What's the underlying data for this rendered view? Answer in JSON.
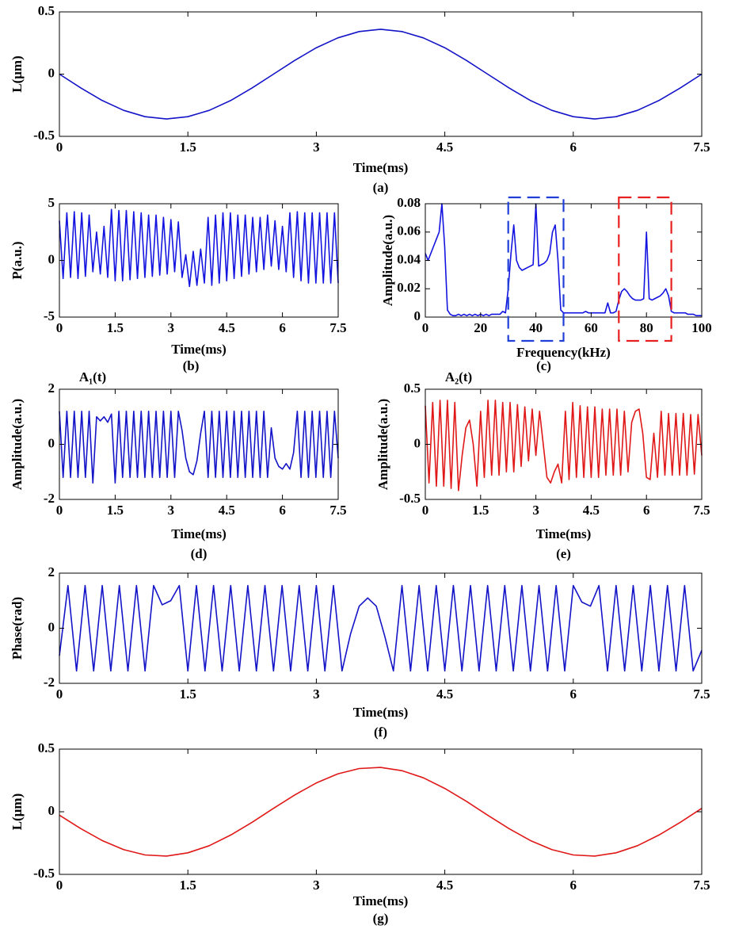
{
  "chart_data": [
    {
      "type": "line",
      "caption": "(a)",
      "xlabel": "Time(ms)",
      "ylabel": "L(μm)",
      "color": "#1414c8",
      "xlim": [
        0,
        7.5
      ],
      "xticks": [
        0,
        1.5,
        3,
        4.5,
        6,
        7.5
      ],
      "ylim": [
        -0.5,
        0.5
      ],
      "yticks": [
        -0.5,
        0,
        0.5
      ],
      "x": [
        0,
        0.25,
        0.5,
        0.75,
        1,
        1.25,
        1.5,
        1.75,
        2,
        2.25,
        2.5,
        2.75,
        3,
        3.25,
        3.5,
        3.75,
        4,
        4.25,
        4.5,
        4.75,
        5,
        5.25,
        5.5,
        5.75,
        6,
        6.25,
        6.5,
        6.75,
        7,
        7.25,
        7.5
      ],
      "values": [
        0,
        -0.111,
        -0.212,
        -0.291,
        -0.342,
        -0.36,
        -0.342,
        -0.291,
        -0.212,
        -0.111,
        0,
        0.111,
        0.212,
        0.291,
        0.342,
        0.36,
        0.342,
        0.291,
        0.212,
        0.111,
        0,
        -0.111,
        -0.212,
        -0.291,
        -0.342,
        -0.36,
        -0.342,
        -0.291,
        -0.212,
        -0.111,
        0
      ]
    },
    {
      "type": "line",
      "caption": "(b)",
      "xlabel": "Time(ms)",
      "ylabel": "P(a.u.)",
      "color": "#1414e0",
      "xlim": [
        0,
        7.5
      ],
      "xticks": [
        0,
        1.5,
        3,
        4.5,
        6,
        7.5
      ],
      "ylim": [
        -5,
        5
      ],
      "yticks": [
        -5,
        0,
        5
      ],
      "x": [
        0,
        0.1,
        0.2,
        0.3,
        0.4,
        0.5,
        0.6,
        0.7,
        0.8,
        0.9,
        1,
        1.1,
        1.2,
        1.3,
        1.4,
        1.5,
        1.6,
        1.7,
        1.8,
        1.9,
        2,
        2.1,
        2.2,
        2.3,
        2.4,
        2.5,
        2.6,
        2.7,
        2.8,
        2.9,
        3,
        3.1,
        3.2,
        3.3,
        3.4,
        3.5,
        3.6,
        3.7,
        3.8,
        3.9,
        4,
        4.1,
        4.2,
        4.3,
        4.4,
        4.5,
        4.6,
        4.7,
        4.8,
        4.9,
        5,
        5.1,
        5.2,
        5.3,
        5.4,
        5.5,
        5.6,
        5.7,
        5.8,
        5.9,
        6,
        6.1,
        6.2,
        6.3,
        6.4,
        6.5,
        6.6,
        6.7,
        6.8,
        6.9,
        7,
        7.1,
        7.2,
        7.3,
        7.4,
        7.5
      ],
      "values": [
        3.5,
        -1.6,
        4.2,
        -1.5,
        4.3,
        -1.6,
        4.2,
        -1.4,
        4.0,
        -1.0,
        2.5,
        -1.2,
        3.0,
        -1.5,
        4.5,
        -1.8,
        4.4,
        -1.8,
        4.4,
        -1.7,
        4.3,
        -1.6,
        4.2,
        -1.5,
        4.0,
        -1.4,
        4.0,
        -1.3,
        3.8,
        -1.2,
        3.6,
        -1.0,
        3.4,
        -1.5,
        0.5,
        -2.3,
        0.8,
        -2.2,
        1.0,
        -2.0,
        3.8,
        -2.2,
        4.0,
        -2.0,
        4.2,
        -1.8,
        4.2,
        -1.6,
        4.0,
        -1.4,
        4.0,
        -1.2,
        3.8,
        -1.0,
        3.8,
        -0.8,
        4.0,
        -0.5,
        3.5,
        -0.8,
        3.0,
        -1.0,
        4.2,
        -1.5,
        4.3,
        -1.8,
        4.2,
        -2.0,
        4.2,
        -2.0,
        4.2,
        -2.0,
        4.2,
        -2.0,
        4.2,
        -2.0
      ]
    },
    {
      "type": "line",
      "caption": "(c)",
      "xlabel": "Frequency(kHz)",
      "ylabel": "Amplitude(a.u.)",
      "color": "#1414e0",
      "xlim": [
        0,
        100
      ],
      "xticks": [
        0,
        20,
        40,
        60,
        80,
        100
      ],
      "ylim": [
        0,
        0.08
      ],
      "yticks": [
        0,
        0.02,
        0.04,
        0.06,
        0.08
      ],
      "highlights": [
        {
          "xlim": [
            30,
            50
          ],
          "color": "#1f3fd8"
        },
        {
          "xlim": [
            70,
            89
          ],
          "color": "#e82020"
        }
      ],
      "x": [
        0,
        1,
        2,
        3,
        4,
        5,
        6,
        7,
        8,
        9,
        10,
        11,
        12,
        13,
        14,
        15,
        16,
        17,
        18,
        19,
        20,
        21,
        22,
        23,
        24,
        25,
        26,
        27,
        28,
        29,
        30,
        31,
        32,
        33,
        34,
        35,
        36,
        37,
        38,
        39,
        40,
        41,
        42,
        43,
        44,
        45,
        46,
        47,
        48,
        49,
        50,
        51,
        52,
        53,
        54,
        55,
        56,
        57,
        58,
        59,
        60,
        61,
        62,
        63,
        64,
        65,
        66,
        67,
        68,
        69,
        70,
        71,
        72,
        73,
        74,
        75,
        76,
        77,
        78,
        79,
        80,
        81,
        82,
        83,
        84,
        85,
        86,
        87,
        88,
        89,
        90,
        91,
        92,
        93,
        94,
        95,
        96,
        97,
        98,
        99,
        100
      ],
      "values": [
        0.045,
        0.04,
        0.045,
        0.05,
        0.055,
        0.06,
        0.08,
        0.05,
        0.005,
        0.002,
        0.001,
        0.001,
        0.002,
        0.001,
        0.002,
        0.001,
        0.002,
        0.001,
        0.002,
        0.001,
        0.002,
        0.001,
        0.002,
        0.001,
        0.002,
        0.002,
        0.002,
        0.002,
        0.004,
        0.003,
        0.02,
        0.045,
        0.065,
        0.04,
        0.035,
        0.033,
        0.034,
        0.035,
        0.036,
        0.037,
        0.08,
        0.036,
        0.037,
        0.038,
        0.04,
        0.045,
        0.06,
        0.065,
        0.04,
        0.005,
        0.003,
        0.003,
        0.003,
        0.003,
        0.003,
        0.003,
        0.003,
        0.003,
        0.004,
        0.003,
        0.003,
        0.003,
        0.003,
        0.003,
        0.003,
        0.003,
        0.01,
        0.003,
        0.003,
        0.004,
        0.012,
        0.018,
        0.02,
        0.018,
        0.015,
        0.013,
        0.012,
        0.012,
        0.012,
        0.013,
        0.06,
        0.013,
        0.012,
        0.013,
        0.014,
        0.015,
        0.017,
        0.02,
        0.015,
        0.004,
        0.003,
        0.003,
        0.003,
        0.003,
        0.003,
        0.002,
        0.002,
        0.002,
        0.001,
        0.001,
        0.001
      ]
    },
    {
      "type": "line",
      "title": "A₁(t)",
      "caption": "(d)",
      "xlabel": "Time(ms)",
      "ylabel": "Amplitude(a.u.)",
      "color": "#1414c8",
      "xlim": [
        0,
        7.5
      ],
      "xticks": [
        0,
        1.5,
        3,
        4.5,
        6,
        7.5
      ],
      "ylim": [
        -2,
        2
      ],
      "yticks": [
        -2,
        0,
        2
      ],
      "x": [
        0,
        0.1,
        0.2,
        0.3,
        0.4,
        0.5,
        0.6,
        0.7,
        0.8,
        0.9,
        1,
        1.1,
        1.2,
        1.3,
        1.4,
        1.5,
        1.6,
        1.7,
        1.8,
        1.9,
        2,
        2.1,
        2.2,
        2.3,
        2.4,
        2.5,
        2.6,
        2.7,
        2.8,
        2.9,
        3,
        3.1,
        3.2,
        3.3,
        3.4,
        3.5,
        3.6,
        3.7,
        3.8,
        3.9,
        4,
        4.1,
        4.2,
        4.3,
        4.4,
        4.5,
        4.6,
        4.7,
        4.8,
        4.9,
        5,
        5.1,
        5.2,
        5.3,
        5.4,
        5.5,
        5.6,
        5.7,
        5.8,
        5.9,
        6,
        6.1,
        6.2,
        6.3,
        6.4,
        6.5,
        6.6,
        6.7,
        6.8,
        6.9,
        7,
        7.1,
        7.2,
        7.3,
        7.4,
        7.5
      ],
      "values": [
        1.2,
        -1.2,
        1.2,
        -1.2,
        1.2,
        -1.2,
        1.2,
        -1.2,
        1.2,
        -1.4,
        1.0,
        0.85,
        1.0,
        0.8,
        1.1,
        -1.4,
        1.2,
        -1.2,
        1.2,
        -1.2,
        1.2,
        -1.2,
        1.2,
        -1.2,
        1.2,
        -1.2,
        1.2,
        -1.2,
        1.2,
        -1.2,
        1.2,
        -1.2,
        1.2,
        0.5,
        -0.5,
        -1.0,
        -1.1,
        -0.6,
        0.4,
        1.2,
        -1.2,
        1.2,
        -1.2,
        1.2,
        -1.2,
        1.2,
        -1.2,
        1.2,
        -1.2,
        1.2,
        -1.2,
        1.2,
        -1.2,
        1.2,
        -1.2,
        1.2,
        -1.2,
        0.6,
        -0.5,
        -0.8,
        -0.9,
        -0.7,
        -0.9,
        -0.3,
        1.2,
        -1.2,
        1.2,
        -1.2,
        1.2,
        -1.2,
        1.2,
        -1.2,
        1.2,
        -1.2,
        1.2,
        -0.5
      ]
    },
    {
      "type": "line",
      "title": "A₂(t)",
      "caption": "(e)",
      "xlabel": "Time(ms)",
      "ylabel": "Amplitude(a.u.)",
      "color": "#e01818",
      "xlim": [
        0,
        7.5
      ],
      "xticks": [
        0,
        1.5,
        3,
        4.5,
        6,
        7.5
      ],
      "ylim": [
        -0.5,
        0.5
      ],
      "yticks": [
        -0.5,
        0,
        0.5
      ],
      "x": [
        0,
        0.1,
        0.2,
        0.3,
        0.4,
        0.5,
        0.6,
        0.7,
        0.8,
        0.9,
        1,
        1.1,
        1.2,
        1.3,
        1.4,
        1.5,
        1.6,
        1.7,
        1.8,
        1.9,
        2,
        2.1,
        2.2,
        2.3,
        2.4,
        2.5,
        2.6,
        2.7,
        2.8,
        2.9,
        3,
        3.1,
        3.2,
        3.3,
        3.4,
        3.5,
        3.6,
        3.7,
        3.8,
        3.9,
        4,
        4.1,
        4.2,
        4.3,
        4.4,
        4.5,
        4.6,
        4.7,
        4.8,
        4.9,
        5,
        5.1,
        5.2,
        5.3,
        5.4,
        5.5,
        5.6,
        5.7,
        5.8,
        5.9,
        6,
        6.1,
        6.2,
        6.3,
        6.4,
        6.5,
        6.6,
        6.7,
        6.8,
        6.9,
        7,
        7.1,
        7.2,
        7.3,
        7.4,
        7.5
      ],
      "values": [
        0.35,
        -0.35,
        0.38,
        -0.38,
        0.4,
        -0.38,
        0.4,
        -0.4,
        0.38,
        -0.42,
        -0.1,
        0.15,
        0.22,
        0.0,
        -0.38,
        0.3,
        -0.3,
        0.4,
        -0.28,
        0.4,
        -0.28,
        0.38,
        -0.25,
        0.38,
        -0.25,
        0.36,
        -0.2,
        0.34,
        -0.15,
        0.32,
        -0.1,
        0.3,
        0.0,
        -0.3,
        -0.35,
        -0.25,
        -0.18,
        -0.35,
        0.3,
        -0.32,
        0.38,
        -0.3,
        0.35,
        -0.3,
        0.34,
        -0.3,
        0.34,
        -0.3,
        0.32,
        -0.28,
        0.32,
        -0.28,
        0.32,
        -0.28,
        0.3,
        -0.25,
        0.2,
        0.3,
        0.32,
        0.1,
        -0.3,
        -0.32,
        0.1,
        -0.3,
        0.3,
        -0.28,
        0.28,
        -0.28,
        0.28,
        -0.28,
        0.28,
        -0.28,
        0.27,
        -0.27,
        0.27,
        -0.1
      ]
    },
    {
      "type": "line",
      "caption": "(f)",
      "xlabel": "Time(ms)",
      "ylabel": "Phase(rad)",
      "color": "#1414c8",
      "xlim": [
        0,
        7.5
      ],
      "xticks": [
        0,
        1.5,
        3,
        4.5,
        6,
        7.5
      ],
      "ylim": [
        -2,
        2
      ],
      "yticks": [
        -2,
        0,
        2
      ],
      "x": [
        0,
        0.1,
        0.2,
        0.3,
        0.4,
        0.5,
        0.6,
        0.7,
        0.8,
        0.9,
        1,
        1.1,
        1.2,
        1.3,
        1.4,
        1.5,
        1.6,
        1.7,
        1.8,
        1.9,
        2,
        2.1,
        2.2,
        2.3,
        2.4,
        2.5,
        2.6,
        2.7,
        2.8,
        2.9,
        3,
        3.1,
        3.2,
        3.3,
        3.4,
        3.5,
        3.6,
        3.7,
        3.8,
        3.9,
        4,
        4.1,
        4.2,
        4.3,
        4.4,
        4.5,
        4.6,
        4.7,
        4.8,
        4.9,
        5,
        5.1,
        5.2,
        5.3,
        5.4,
        5.5,
        5.6,
        5.7,
        5.8,
        5.9,
        6,
        6.1,
        6.2,
        6.3,
        6.4,
        6.5,
        6.6,
        6.7,
        6.8,
        6.9,
        7,
        7.1,
        7.2,
        7.3,
        7.4,
        7.5
      ],
      "values": [
        -1.0,
        1.55,
        -1.55,
        1.55,
        -1.55,
        1.55,
        -1.55,
        1.55,
        -1.55,
        1.55,
        -1.55,
        1.55,
        0.85,
        1.0,
        1.55,
        -1.55,
        1.55,
        -1.55,
        1.55,
        -1.55,
        1.55,
        -1.55,
        1.55,
        -1.55,
        1.55,
        -1.55,
        1.55,
        -1.55,
        1.55,
        -1.55,
        1.55,
        -1.55,
        1.55,
        -1.55,
        -0.2,
        0.8,
        1.1,
        0.8,
        -0.3,
        -1.55,
        1.55,
        -1.55,
        1.55,
        -1.55,
        1.55,
        -1.55,
        1.55,
        -1.55,
        1.55,
        -1.55,
        1.55,
        -1.55,
        1.55,
        -1.55,
        1.55,
        -1.55,
        1.55,
        -1.55,
        1.55,
        -1.55,
        1.55,
        0.95,
        0.8,
        1.55,
        -1.55,
        1.55,
        -1.55,
        1.55,
        -1.55,
        1.55,
        -1.55,
        1.55,
        -1.55,
        1.55,
        -1.55,
        -0.8
      ]
    },
    {
      "type": "line",
      "caption": "(g)",
      "xlabel": "Time(ms)",
      "ylabel": "L(μm)",
      "color": "#e01818",
      "xlim": [
        0,
        7.5
      ],
      "xticks": [
        0,
        1.5,
        3,
        4.5,
        6,
        7.5
      ],
      "ylim": [
        -0.5,
        0.5
      ],
      "yticks": [
        -0.5,
        0,
        0.5
      ],
      "x": [
        0,
        0.25,
        0.5,
        0.75,
        1,
        1.25,
        1.5,
        1.75,
        2,
        2.25,
        2.5,
        2.75,
        3,
        3.25,
        3.5,
        3.75,
        4,
        4.25,
        4.5,
        4.75,
        5,
        5.25,
        5.5,
        5.75,
        6,
        6.25,
        6.5,
        6.75,
        7,
        7.25,
        7.5
      ],
      "values": [
        -0.027,
        -0.135,
        -0.23,
        -0.302,
        -0.345,
        -0.354,
        -0.328,
        -0.271,
        -0.186,
        -0.084,
        0.027,
        0.135,
        0.23,
        0.302,
        0.345,
        0.354,
        0.328,
        0.271,
        0.186,
        0.084,
        -0.027,
        -0.135,
        -0.23,
        -0.302,
        -0.345,
        -0.354,
        -0.328,
        -0.271,
        -0.186,
        -0.084,
        0.027
      ]
    }
  ]
}
